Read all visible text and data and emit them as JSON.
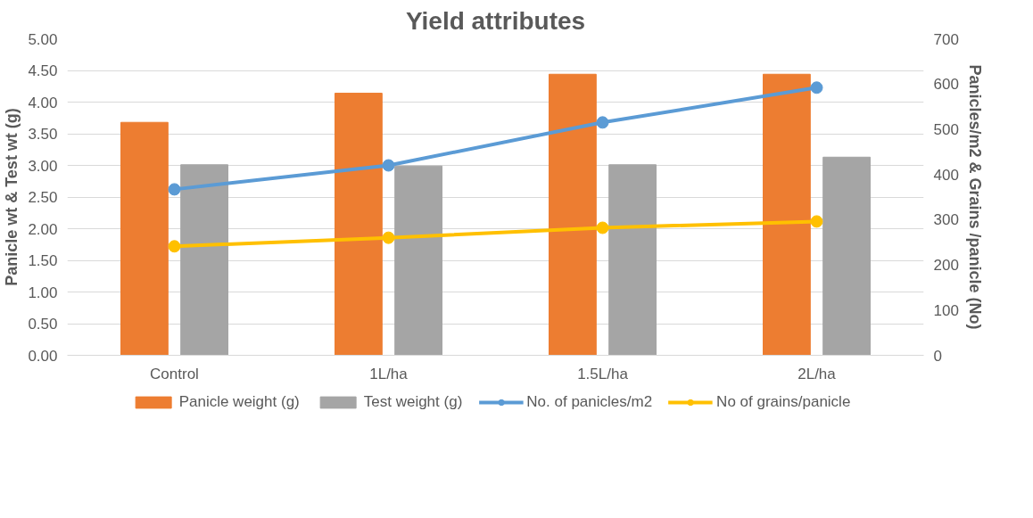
{
  "chart_data": {
    "type": "bar",
    "title": "Yield attributes",
    "ylabel": "Panicle wt & Test wt (g)",
    "y2label": "Panicles/m2 & Grains /panicle (No)",
    "categories": [
      "Control",
      "1L/ha",
      "1.5L/ha",
      "2L/ha"
    ],
    "series": [
      {
        "name": "Panicle weight (g)",
        "color": "#ed7d31",
        "values": [
          3.68,
          4.14,
          4.44,
          4.44
        ]
      },
      {
        "name": "Test weight (g)",
        "color": "#a5a5a5",
        "values": [
          3.01,
          2.99,
          3.01,
          3.13
        ]
      },
      {
        "name": "No. of panicles/m2",
        "color": "#5b9bd5",
        "type": "line",
        "axis": "y2",
        "values": [
          367,
          420,
          515,
          592
        ]
      },
      {
        "name": "No of grains/panicle",
        "color": "#ffc000",
        "type": "line",
        "axis": "y2",
        "values": [
          241,
          260,
          282,
          296
        ]
      }
    ],
    "ylim": [
      0,
      5
    ],
    "yticks": [
      {
        "value": 0,
        "label": "0.00"
      },
      {
        "value": 0.5,
        "label": "0.50"
      },
      {
        "value": 1,
        "label": "1.00"
      },
      {
        "value": 1.5,
        "label": "1.50"
      },
      {
        "value": 2,
        "label": "2.00"
      },
      {
        "value": 2.5,
        "label": "2.50"
      },
      {
        "value": 3,
        "label": "3.00"
      },
      {
        "value": 3.5,
        "label": "3.50"
      },
      {
        "value": 4,
        "label": "4.00"
      },
      {
        "value": 4.5,
        "label": "4.50"
      },
      {
        "value": 5,
        "label": "5.00"
      }
    ],
    "y2lim": [
      0,
      700
    ],
    "y2ticks": [
      0,
      100,
      200,
      300,
      400,
      500,
      600,
      700
    ],
    "grid": "y",
    "legend": "bottom",
    "marker": "circle"
  }
}
